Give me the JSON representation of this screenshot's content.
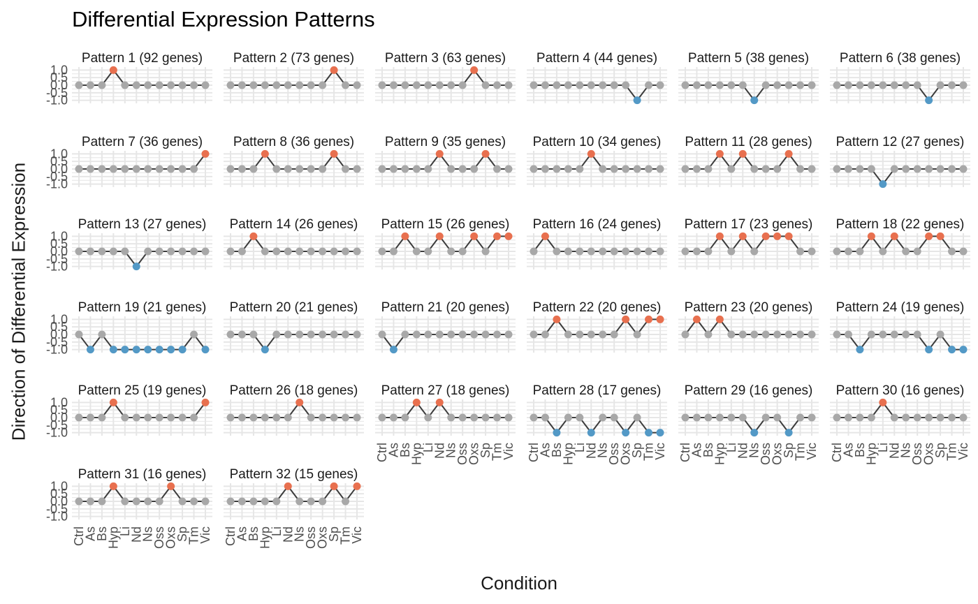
{
  "chart_data": {
    "type": "line",
    "title": "Differential Expression Patterns",
    "xlabel": "Condition",
    "ylabel": "Direction of Differential Expression",
    "categories": [
      "Ctrl",
      "As",
      "Bs",
      "Hyp",
      "Li",
      "Nd",
      "Ns",
      "Oss",
      "Oxs",
      "Sp",
      "Tm",
      "Vic"
    ],
    "y_ticks": [
      "-1.0",
      "-0.5",
      "0.0",
      "0.5",
      "1.0"
    ],
    "ylim": [
      -1,
      1
    ],
    "grid": true,
    "colors": {
      "up": "#e8704f",
      "down": "#5399c6",
      "neutral": "#a8a8a8",
      "line": "#3c3c3c",
      "grid": "#e6e6e6"
    },
    "facets": [
      {
        "label": "Pattern 1 (92 genes)",
        "values": [
          0,
          0,
          0,
          1,
          0,
          0,
          0,
          0,
          0,
          0,
          0,
          0
        ]
      },
      {
        "label": "Pattern 2 (73 genes)",
        "values": [
          0,
          0,
          0,
          0,
          0,
          0,
          0,
          0,
          0,
          1,
          0,
          0
        ]
      },
      {
        "label": "Pattern 3 (63 genes)",
        "values": [
          0,
          0,
          0,
          0,
          0,
          0,
          0,
          0,
          1,
          0,
          0,
          0
        ]
      },
      {
        "label": "Pattern 4 (44 genes)",
        "values": [
          0,
          0,
          0,
          0,
          0,
          0,
          0,
          0,
          0,
          -1,
          0,
          0
        ]
      },
      {
        "label": "Pattern 5 (38 genes)",
        "values": [
          0,
          0,
          0,
          0,
          0,
          0,
          -1,
          0,
          0,
          0,
          0,
          0
        ]
      },
      {
        "label": "Pattern 6 (38 genes)",
        "values": [
          0,
          0,
          0,
          0,
          0,
          0,
          0,
          0,
          -1,
          0,
          0,
          0
        ]
      },
      {
        "label": "Pattern 7 (36 genes)",
        "values": [
          0,
          0,
          0,
          0,
          0,
          0,
          0,
          0,
          0,
          0,
          0,
          1
        ]
      },
      {
        "label": "Pattern 8 (36 genes)",
        "values": [
          0,
          0,
          0,
          1,
          0,
          0,
          0,
          0,
          0,
          1,
          0,
          0
        ]
      },
      {
        "label": "Pattern 9 (35 genes)",
        "values": [
          0,
          0,
          0,
          0,
          0,
          1,
          0,
          0,
          0,
          1,
          0,
          0
        ]
      },
      {
        "label": "Pattern 10 (34 genes)",
        "values": [
          0,
          0,
          0,
          0,
          0,
          1,
          0,
          0,
          0,
          0,
          0,
          0
        ]
      },
      {
        "label": "Pattern 11 (28 genes)",
        "values": [
          0,
          0,
          0,
          1,
          0,
          1,
          0,
          0,
          0,
          1,
          0,
          0
        ]
      },
      {
        "label": "Pattern 12 (27 genes)",
        "values": [
          0,
          0,
          0,
          0,
          -1,
          0,
          0,
          0,
          0,
          0,
          0,
          0
        ]
      },
      {
        "label": "Pattern 13 (27 genes)",
        "values": [
          0,
          0,
          0,
          0,
          0,
          -1,
          0,
          0,
          0,
          0,
          0,
          0
        ]
      },
      {
        "label": "Pattern 14 (26 genes)",
        "values": [
          0,
          0,
          1,
          0,
          0,
          0,
          0,
          0,
          0,
          0,
          0,
          0
        ]
      },
      {
        "label": "Pattern 15 (26 genes)",
        "values": [
          0,
          0,
          1,
          0,
          0,
          1,
          0,
          0,
          1,
          0,
          1,
          1
        ]
      },
      {
        "label": "Pattern 16 (24 genes)",
        "values": [
          0,
          1,
          0,
          0,
          0,
          0,
          0,
          0,
          0,
          0,
          0,
          0
        ]
      },
      {
        "label": "Pattern 17 (23 genes)",
        "values": [
          0,
          0,
          0,
          1,
          0,
          1,
          0,
          1,
          1,
          1,
          0,
          0
        ]
      },
      {
        "label": "Pattern 18 (22 genes)",
        "values": [
          0,
          0,
          0,
          1,
          0,
          1,
          0,
          0,
          1,
          1,
          0,
          0
        ]
      },
      {
        "label": "Pattern 19 (21 genes)",
        "values": [
          0,
          -1,
          0,
          -1,
          -1,
          -1,
          -1,
          -1,
          -1,
          -1,
          0,
          -1
        ]
      },
      {
        "label": "Pattern 20 (21 genes)",
        "values": [
          0,
          0,
          0,
          -1,
          0,
          0,
          0,
          0,
          0,
          0,
          0,
          0
        ]
      },
      {
        "label": "Pattern 21 (20 genes)",
        "values": [
          0,
          -1,
          0,
          0,
          0,
          0,
          0,
          0,
          0,
          0,
          0,
          0
        ]
      },
      {
        "label": "Pattern 22 (20 genes)",
        "values": [
          0,
          0,
          1,
          0,
          0,
          0,
          0,
          0,
          1,
          0,
          1,
          1
        ]
      },
      {
        "label": "Pattern 23 (20 genes)",
        "values": [
          0,
          1,
          0,
          1,
          0,
          0,
          0,
          0,
          0,
          0,
          0,
          0
        ]
      },
      {
        "label": "Pattern 24 (19 genes)",
        "values": [
          0,
          0,
          -1,
          0,
          0,
          0,
          0,
          0,
          -1,
          0,
          -1,
          -1
        ]
      },
      {
        "label": "Pattern 25 (19 genes)",
        "values": [
          0,
          0,
          0,
          1,
          0,
          0,
          0,
          0,
          0,
          0,
          0,
          1
        ]
      },
      {
        "label": "Pattern 26 (18 genes)",
        "values": [
          0,
          0,
          0,
          0,
          0,
          0,
          1,
          0,
          0,
          0,
          0,
          0
        ]
      },
      {
        "label": "Pattern 27 (18 genes)",
        "values": [
          0,
          0,
          0,
          1,
          0,
          1,
          0,
          0,
          0,
          0,
          0,
          0
        ]
      },
      {
        "label": "Pattern 28 (17 genes)",
        "values": [
          0,
          0,
          -1,
          0,
          0,
          -1,
          0,
          0,
          -1,
          0,
          -1,
          -1
        ]
      },
      {
        "label": "Pattern 29 (16 genes)",
        "values": [
          0,
          0,
          0,
          0,
          0,
          0,
          -1,
          0,
          0,
          -1,
          0,
          0
        ]
      },
      {
        "label": "Pattern 30 (16 genes)",
        "values": [
          0,
          0,
          0,
          0,
          1,
          0,
          0,
          0,
          0,
          0,
          0,
          0
        ]
      },
      {
        "label": "Pattern 31 (16 genes)",
        "values": [
          0,
          0,
          0,
          1,
          0,
          0,
          0,
          0,
          1,
          0,
          0,
          0
        ]
      },
      {
        "label": "Pattern 32 (15 genes)",
        "values": [
          0,
          0,
          0,
          0,
          0,
          1,
          0,
          0,
          0,
          1,
          0,
          1
        ]
      }
    ]
  }
}
